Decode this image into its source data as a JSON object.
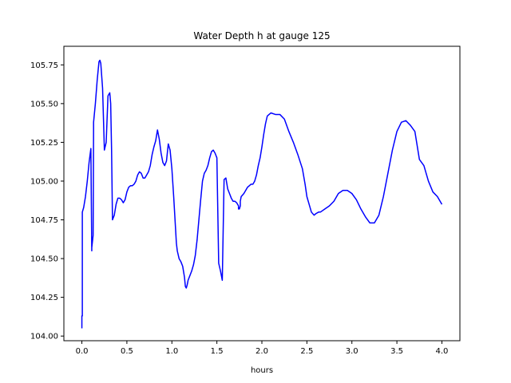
{
  "chart_data": {
    "type": "line",
    "title": "Water Depth h at gauge 125",
    "xlabel": "hours",
    "ylabel": "",
    "xlim": [
      -0.2,
      4.2
    ],
    "ylim": [
      103.97,
      105.87
    ],
    "xticks": [
      0.0,
      0.5,
      1.0,
      1.5,
      2.0,
      2.5,
      3.0,
      3.5,
      4.0
    ],
    "xtick_labels": [
      "0.0",
      "0.5",
      "1.0",
      "1.5",
      "2.0",
      "2.5",
      "3.0",
      "3.5",
      "4.0"
    ],
    "yticks": [
      104.0,
      104.25,
      104.5,
      104.75,
      105.0,
      105.25,
      105.5,
      105.75
    ],
    "ytick_labels": [
      "104.00",
      "104.25",
      "104.50",
      "104.75",
      "105.00",
      "105.25",
      "105.50",
      "105.75"
    ],
    "grid": false,
    "legend": "none",
    "series": [
      {
        "color": "#0000ff",
        "x": [
          0.0,
          0.0,
          0.005,
          0.005,
          0.02,
          0.04,
          0.06,
          0.08,
          0.1,
          0.11,
          0.11,
          0.125,
          0.13,
          0.13,
          0.15,
          0.17,
          0.19,
          0.2,
          0.21,
          0.23,
          0.25,
          0.27,
          0.29,
          0.31,
          0.32,
          0.33,
          0.34,
          0.36,
          0.38,
          0.4,
          0.42,
          0.44,
          0.46,
          0.48,
          0.5,
          0.52,
          0.54,
          0.56,
          0.58,
          0.6,
          0.62,
          0.64,
          0.66,
          0.68,
          0.7,
          0.72,
          0.74,
          0.76,
          0.78,
          0.8,
          0.82,
          0.84,
          0.86,
          0.88,
          0.9,
          0.92,
          0.94,
          0.96,
          0.98,
          1.0,
          1.02,
          1.04,
          1.05,
          1.06,
          1.08,
          1.1,
          1.12,
          1.14,
          1.15,
          1.16,
          1.17,
          1.18,
          1.2,
          1.22,
          1.24,
          1.26,
          1.28,
          1.3,
          1.32,
          1.34,
          1.36,
          1.38,
          1.4,
          1.42,
          1.44,
          1.46,
          1.48,
          1.5,
          1.52,
          1.54,
          1.56,
          1.58,
          1.6,
          1.62,
          1.64,
          1.66,
          1.68,
          1.7,
          1.72,
          1.74,
          1.74,
          1.75,
          1.76,
          1.76,
          1.77,
          1.8,
          1.82,
          1.84,
          1.86,
          1.88,
          1.9,
          1.92,
          1.94,
          1.96,
          1.98,
          2.0,
          2.02,
          2.04,
          2.06,
          2.08,
          2.1,
          2.15,
          2.2,
          2.25,
          2.3,
          2.35,
          2.4,
          2.45,
          2.48,
          2.5,
          2.53,
          2.55,
          2.58,
          2.6,
          2.63,
          2.65,
          2.7,
          2.75,
          2.8,
          2.85,
          2.9,
          2.95,
          3.0,
          3.05,
          3.1,
          3.15,
          3.2,
          3.25,
          3.3,
          3.35,
          3.4,
          3.45,
          3.5,
          3.55,
          3.6,
          3.65,
          3.7,
          3.75,
          3.8,
          3.85,
          3.9,
          3.95,
          4.0
        ],
        "y": [
          104.05,
          104.13,
          104.13,
          104.8,
          104.83,
          104.9,
          105.0,
          105.12,
          105.21,
          104.55,
          104.57,
          104.65,
          105.33,
          105.38,
          105.5,
          105.65,
          105.77,
          105.78,
          105.76,
          105.6,
          105.2,
          105.25,
          105.55,
          105.57,
          105.5,
          105.2,
          104.75,
          104.78,
          104.85,
          104.89,
          104.89,
          104.88,
          104.86,
          104.88,
          104.93,
          104.96,
          104.97,
          104.97,
          104.98,
          105.0,
          105.04,
          105.06,
          105.05,
          105.02,
          105.02,
          105.04,
          105.06,
          105.1,
          105.17,
          105.22,
          105.26,
          105.33,
          105.27,
          105.18,
          105.12,
          105.1,
          105.13,
          105.24,
          105.2,
          105.08,
          104.9,
          104.7,
          104.6,
          104.55,
          104.5,
          104.48,
          104.45,
          104.38,
          104.32,
          104.31,
          104.33,
          104.36,
          104.39,
          104.42,
          104.46,
          104.52,
          104.62,
          104.75,
          104.88,
          105.0,
          105.05,
          105.07,
          105.1,
          105.15,
          105.19,
          105.2,
          105.18,
          105.15,
          104.47,
          104.42,
          104.36,
          105.01,
          105.02,
          104.95,
          104.92,
          104.89,
          104.87,
          104.87,
          104.86,
          104.84,
          104.82,
          104.82,
          104.84,
          104.87,
          104.9,
          104.92,
          104.94,
          104.96,
          104.97,
          104.98,
          104.98,
          105.0,
          105.04,
          105.1,
          105.15,
          105.22,
          105.3,
          105.37,
          105.42,
          105.43,
          105.44,
          105.43,
          105.43,
          105.4,
          105.32,
          105.25,
          105.17,
          105.08,
          104.98,
          104.9,
          104.84,
          104.8,
          104.78,
          104.79,
          104.8,
          104.8,
          104.82,
          104.84,
          104.87,
          104.92,
          104.94,
          104.94,
          104.92,
          104.88,
          104.82,
          104.77,
          104.73,
          104.73,
          104.78,
          104.9,
          105.05,
          105.2,
          105.32,
          105.38,
          105.39,
          105.36,
          105.32,
          105.14,
          105.1,
          105.0,
          104.93,
          104.9,
          104.85
        ]
      }
    ]
  }
}
